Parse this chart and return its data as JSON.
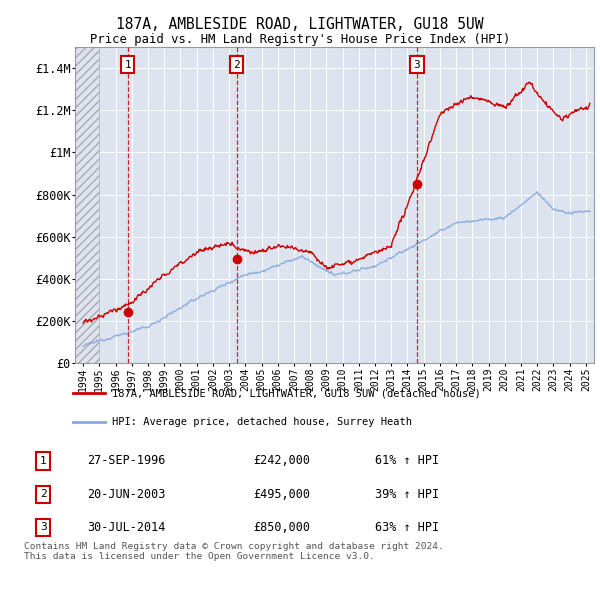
{
  "title": "187A, AMBLESIDE ROAD, LIGHTWATER, GU18 5UW",
  "subtitle": "Price paid vs. HM Land Registry's House Price Index (HPI)",
  "xlim": [
    1993.5,
    2025.5
  ],
  "ylim": [
    0,
    1500000
  ],
  "yticks": [
    0,
    200000,
    400000,
    600000,
    800000,
    1000000,
    1200000,
    1400000
  ],
  "ytick_labels": [
    "£0",
    "£200K",
    "£400K",
    "£600K",
    "£800K",
    "£1M",
    "£1.2M",
    "£1.4M"
  ],
  "sales": [
    {
      "year": 1996.75,
      "price": 242000,
      "label": "1"
    },
    {
      "year": 2003.47,
      "price": 495000,
      "label": "2"
    },
    {
      "year": 2014.58,
      "price": 850000,
      "label": "3"
    }
  ],
  "sale_color": "#cc0000",
  "hpi_color": "#88aadd",
  "legend_entries": [
    "187A, AMBLESIDE ROAD, LIGHTWATER, GU18 5UW (detached house)",
    "HPI: Average price, detached house, Surrey Heath"
  ],
  "table_rows": [
    [
      "1",
      "27-SEP-1996",
      "£242,000",
      "61% ↑ HPI"
    ],
    [
      "2",
      "20-JUN-2003",
      "£495,000",
      "39% ↑ HPI"
    ],
    [
      "3",
      "30-JUL-2014",
      "£850,000",
      "63% ↑ HPI"
    ]
  ],
  "footer": "Contains HM Land Registry data © Crown copyright and database right 2024.\nThis data is licensed under the Open Government Licence v3.0.",
  "background_color": "#ffffff",
  "plot_bg_color": "#dde4f0",
  "grid_color": "#ffffff",
  "hatch_color": "#bbbbbb"
}
